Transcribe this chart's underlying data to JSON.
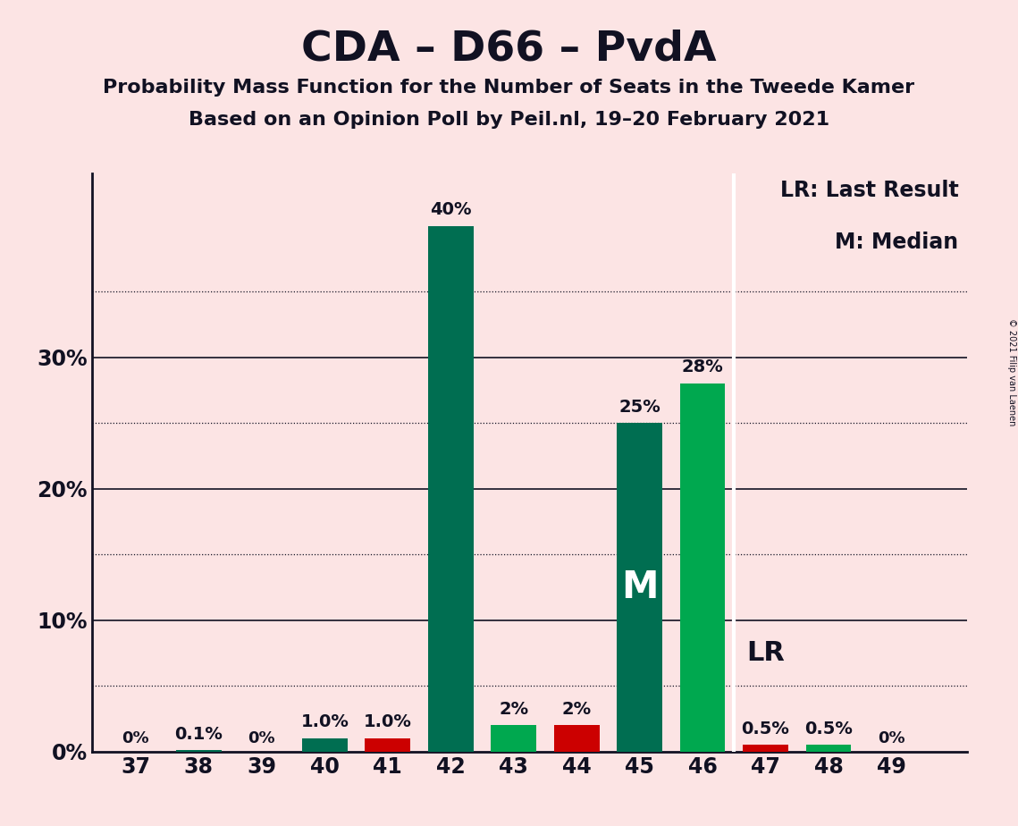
{
  "title": "CDA – D66 – PvdA",
  "subtitle1": "Probability Mass Function for the Number of Seats in the Tweede Kamer",
  "subtitle2": "Based on an Opinion Poll by Peil.nl, 19–20 February 2021",
  "copyright": "© 2021 Filip van Laenen",
  "background_color": "#fce4e4",
  "bar_data": [
    {
      "seat": 37,
      "teal": 0.0,
      "green": 0.0,
      "red": 0.0,
      "label": "0%"
    },
    {
      "seat": 38,
      "teal": 0.1,
      "green": 0.0,
      "red": 0.0,
      "label": "0.1%"
    },
    {
      "seat": 39,
      "teal": 0.0,
      "green": 0.0,
      "red": 0.0,
      "label": "0%"
    },
    {
      "seat": 40,
      "teal": 1.0,
      "green": 0.0,
      "red": 0.0,
      "label": "1.0%"
    },
    {
      "seat": 41,
      "teal": 0.0,
      "green": 0.0,
      "red": 1.0,
      "label": "1.0%"
    },
    {
      "seat": 42,
      "teal": 40.0,
      "green": 0.0,
      "red": 0.0,
      "label": "40%"
    },
    {
      "seat": 43,
      "teal": 0.0,
      "green": 2.0,
      "red": 0.0,
      "label": "2%"
    },
    {
      "seat": 44,
      "teal": 0.0,
      "green": 0.0,
      "red": 2.0,
      "label": "2%"
    },
    {
      "seat": 45,
      "teal": 25.0,
      "green": 0.0,
      "red": 0.0,
      "label": "25%"
    },
    {
      "seat": 46,
      "teal": 0.0,
      "green": 28.0,
      "red": 0.0,
      "label": "28%"
    },
    {
      "seat": 47,
      "teal": 0.0,
      "green": 0.0,
      "red": 0.5,
      "label": "0.5%"
    },
    {
      "seat": 48,
      "teal": 0.0,
      "green": 0.5,
      "red": 0.0,
      "label": "0.5%"
    },
    {
      "seat": 49,
      "teal": 0.0,
      "green": 0.0,
      "red": 0.0,
      "label": "0%"
    }
  ],
  "median_seat": 45,
  "lr_seat": 47,
  "teal_color": "#006e51",
  "green_color": "#00a84f",
  "red_color": "#cc0000",
  "grid_color": "#111122",
  "ylim_max": 44,
  "bar_width": 0.72,
  "legend_lr": "LR: Last Result",
  "legend_m": "M: Median",
  "median_label": "M",
  "lr_label": "LR",
  "solid_grid": [
    10,
    20,
    30
  ],
  "dotted_grid": [
    5,
    15,
    25,
    35
  ],
  "ytick_labels": [
    "0%",
    "10%",
    "20%",
    "30%"
  ]
}
